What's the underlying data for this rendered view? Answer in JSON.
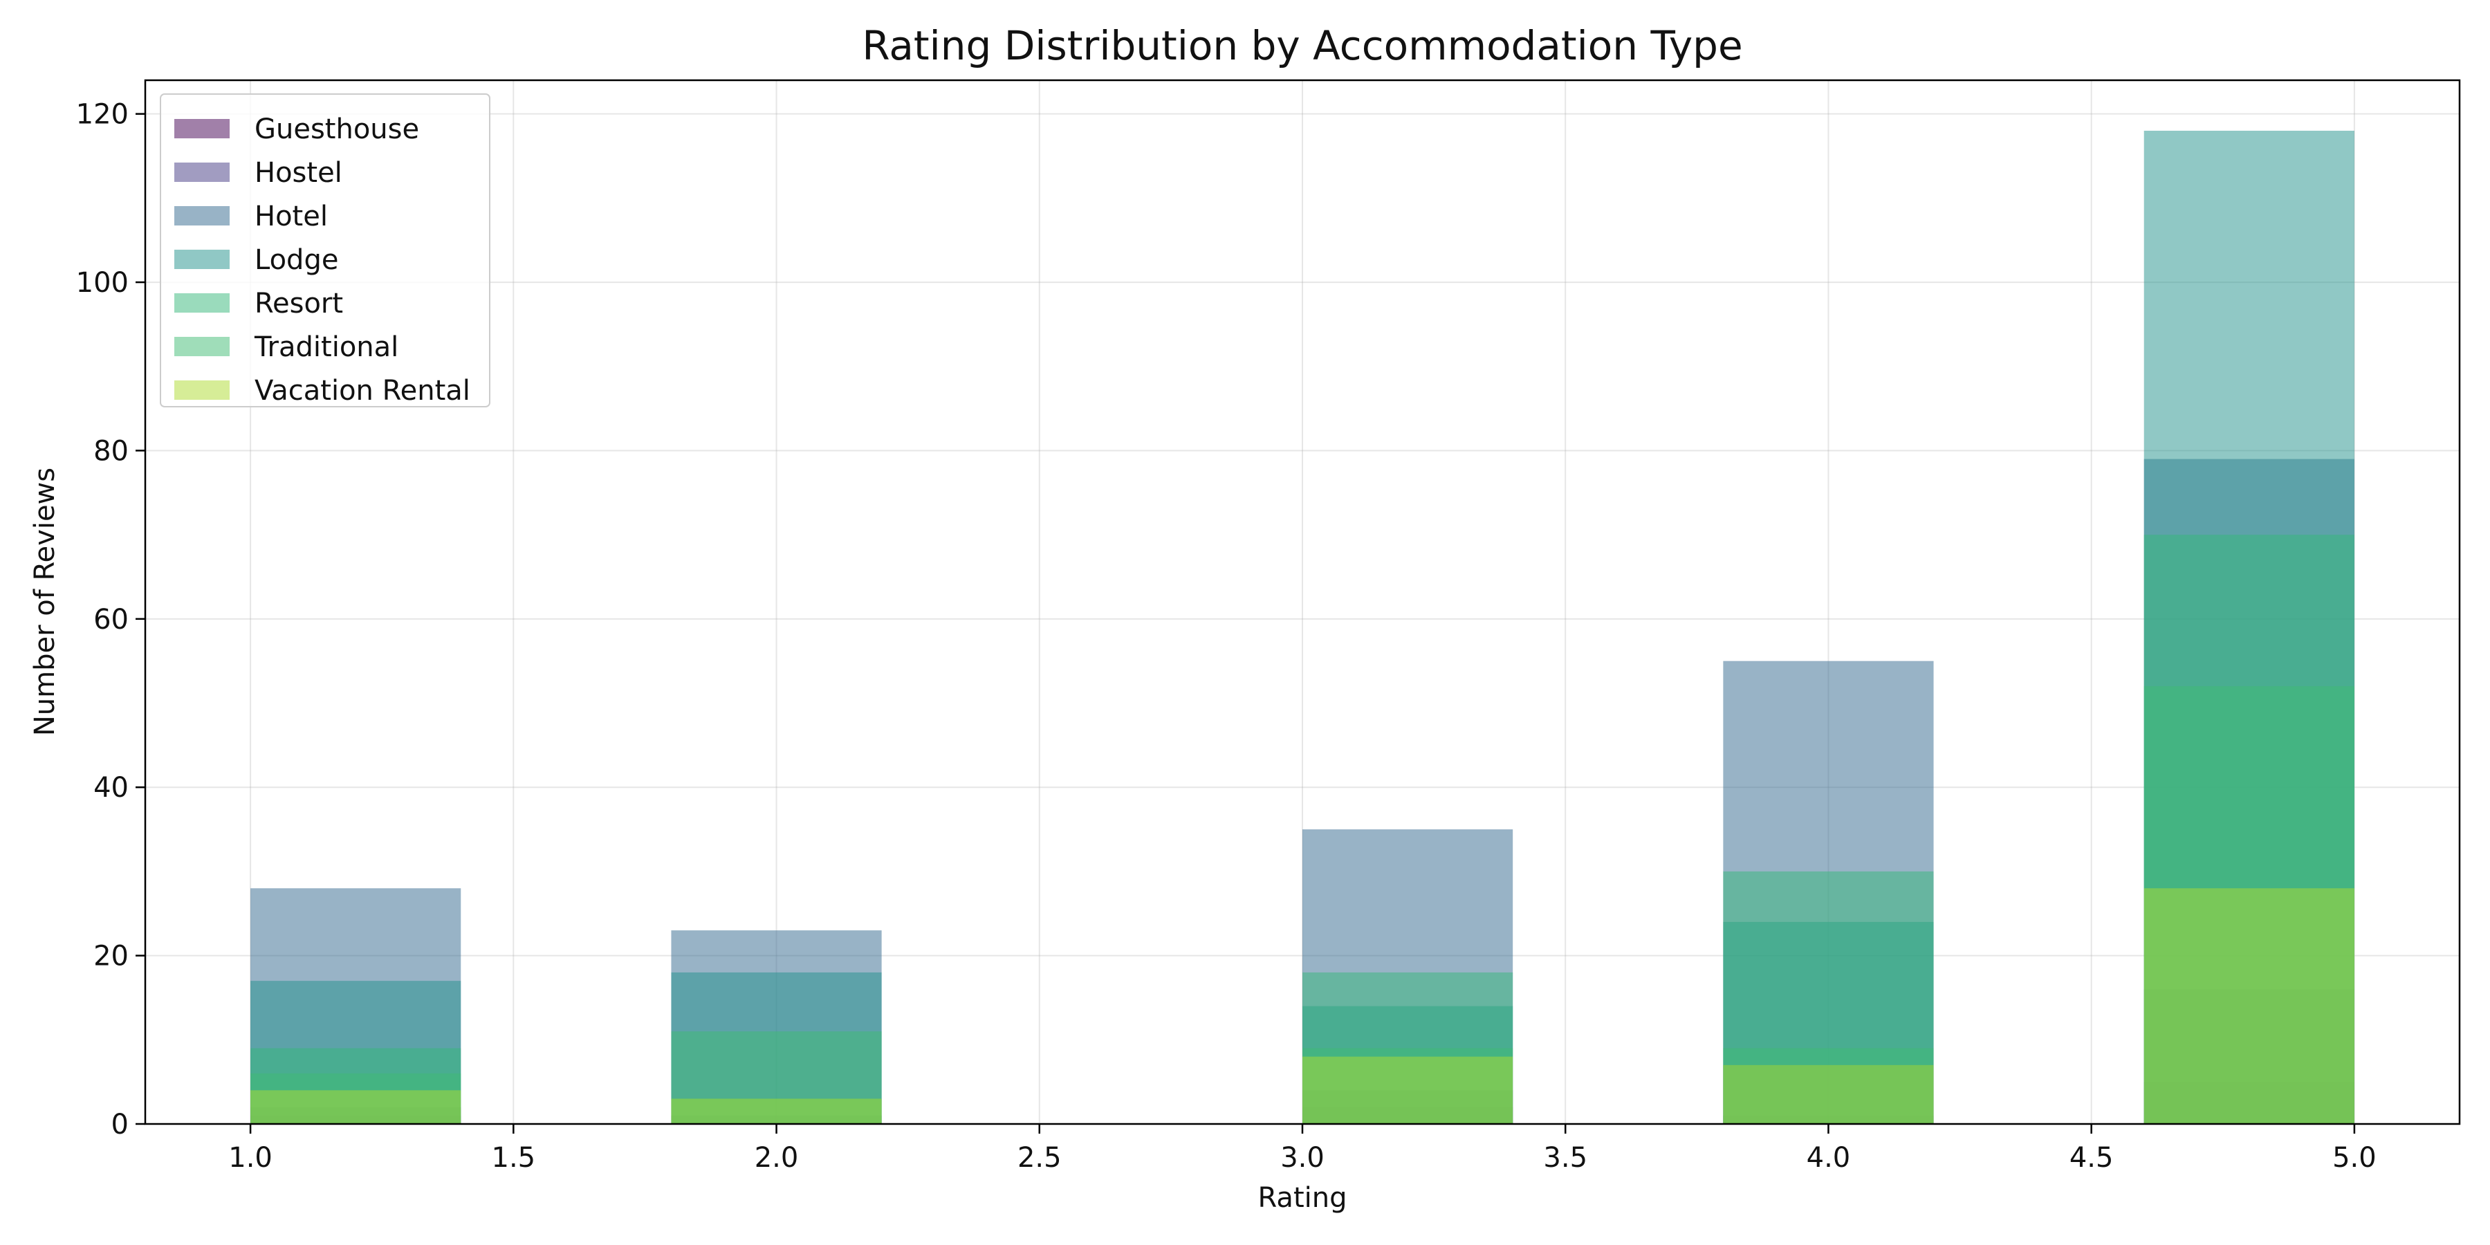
{
  "chart_data": {
    "type": "bar",
    "title": "Rating Distribution by Accommodation Type",
    "xlabel": "Rating",
    "ylabel": "Number of Reviews",
    "xlim": [
      0.8,
      5.2
    ],
    "ylim": [
      0,
      124
    ],
    "xticks": [
      "1.0",
      "1.5",
      "2.0",
      "2.5",
      "3.0",
      "3.5",
      "4.0",
      "4.5",
      "5.0"
    ],
    "yticks": [
      "0",
      "20",
      "40",
      "60",
      "80",
      "100",
      "120"
    ],
    "grid": true,
    "legend_position": "top-left",
    "bin_width": 0.4,
    "bin_starts": [
      1.0,
      1.8,
      3.0,
      3.8,
      4.6
    ],
    "series": [
      {
        "name": "Guesthouse",
        "color": "#440154",
        "values": [
          1,
          0,
          2,
          1,
          5
        ]
      },
      {
        "name": "Hostel",
        "color": "#443983",
        "values": [
          2,
          1,
          4,
          7,
          16
        ]
      },
      {
        "name": "Hotel",
        "color": "#31688e",
        "values": [
          28,
          23,
          35,
          55,
          79
        ]
      },
      {
        "name": "Lodge",
        "color": "#21918c",
        "values": [
          17,
          18,
          14,
          24,
          118
        ]
      },
      {
        "name": "Resort",
        "color": "#35b779",
        "values": [
          9,
          3,
          18,
          30,
          70
        ]
      },
      {
        "name": "Traditional",
        "color": "#3fbc73",
        "values": [
          6,
          11,
          9,
          9,
          52
        ]
      },
      {
        "name": "Vacation Rental",
        "color": "#addc30",
        "values": [
          4,
          3,
          8,
          7,
          28
        ]
      }
    ]
  }
}
